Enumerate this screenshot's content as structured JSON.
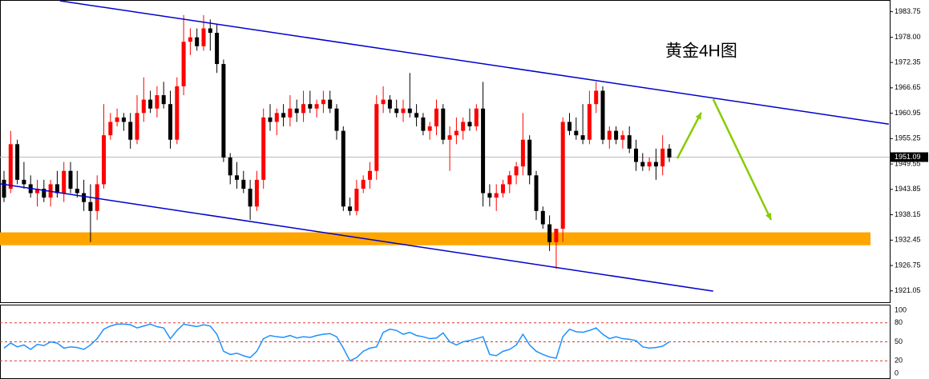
{
  "chart_data": {
    "type": "candlestick",
    "title": "黄金4H图",
    "open": [
      1946,
      1944,
      1954,
      1946,
      1945,
      1943,
      1944,
      1942,
      1945,
      1943,
      1948,
      1944,
      1943,
      1941,
      1939,
      1945,
      1956,
      1959,
      1960,
      1959,
      1955,
      1961,
      1964,
      1962,
      1965,
      1963,
      1955,
      1967,
      1977,
      1978,
      1976,
      1980,
      1979,
      1972,
      1951,
      1947,
      1946,
      1944,
      1940,
      1946,
      1960,
      1959,
      1961,
      1960,
      1962,
      1961,
      1963,
      1962,
      1963,
      1964,
      1962,
      1957,
      1940,
      1939,
      1944,
      1946,
      1948,
      1963,
      1964,
      1962,
      1961,
      1962,
      1961,
      1960,
      1957,
      1958,
      1962,
      1955,
      1956,
      1957,
      1959,
      1958,
      1962,
      1943,
      1942,
      1943,
      1945,
      1947,
      1949,
      1955,
      1947,
      1939,
      1936,
      1932,
      1935,
      1959,
      1957,
      1956,
      1955,
      1963,
      1966,
      1955,
      1957,
      1955,
      1956,
      1953,
      1950,
      1949,
      1950,
      1949,
      1953
    ],
    "high": [
      1948,
      1957,
      1955,
      1950,
      1947,
      1946,
      1946,
      1946,
      1948,
      1950,
      1950,
      1948,
      1946,
      1945,
      1947,
      1963,
      1961,
      1962,
      1961,
      1961,
      1965,
      1969,
      1966,
      1967,
      1968,
      1966,
      1969,
      1983,
      1980,
      1980,
      1983,
      1982,
      1981,
      1973,
      1952,
      1950,
      1948,
      1946,
      1948,
      1962,
      1963,
      1962,
      1963,
      1965,
      1964,
      1966,
      1966,
      1964,
      1966,
      1966,
      1963,
      1958,
      1942,
      1946,
      1947,
      1950,
      1965,
      1967,
      1965,
      1964,
      1964,
      1970,
      1963,
      1961,
      1959,
      1964,
      1963,
      1958,
      1960,
      1960,
      1962,
      1963,
      1968,
      1945,
      1945,
      1946,
      1948,
      1950,
      1961,
      1956,
      1948,
      1940,
      1938,
      1935,
      1960,
      1961,
      1960,
      1963,
      1966,
      1968,
      1967,
      1958,
      1958,
      1957,
      1958,
      1955,
      1952,
      1951,
      1953,
      1956,
      1954
    ],
    "low": [
      1941,
      1943,
      1945,
      1944,
      1942,
      1940,
      1941,
      1940,
      1942,
      1941,
      1943,
      1942,
      1939,
      1932,
      1937,
      1944,
      1955,
      1958,
      1957,
      1953,
      1954,
      1959,
      1961,
      1960,
      1962,
      1953,
      1954,
      1965,
      1974,
      1975,
      1975,
      1975,
      1970,
      1950,
      1945,
      1944,
      1943,
      1937,
      1939,
      1944,
      1957,
      1956,
      1958,
      1958,
      1959,
      1959,
      1961,
      1960,
      1961,
      1961,
      1955,
      1939,
      1938,
      1938,
      1943,
      1944,
      1946,
      1961,
      1961,
      1960,
      1959,
      1960,
      1958,
      1956,
      1955,
      1956,
      1954,
      1948,
      1954,
      1955,
      1957,
      1957,
      1940,
      1940,
      1939,
      1942,
      1943,
      1945,
      1947,
      1945,
      1937,
      1935,
      1930,
      1926,
      1932,
      1956,
      1955,
      1954,
      1954,
      1961,
      1954,
      1953,
      1954,
      1953,
      1952,
      1948,
      1948,
      1948,
      1946,
      1947,
      1950
    ],
    "close": [
      1942,
      1954,
      1946,
      1945,
      1943,
      1944,
      1942,
      1945,
      1943,
      1948,
      1944,
      1943,
      1941,
      1939,
      1945,
      1956,
      1959,
      1960,
      1959,
      1955,
      1961,
      1964,
      1962,
      1965,
      1963,
      1955,
      1967,
      1977,
      1978,
      1976,
      1980,
      1979,
      1972,
      1951,
      1947,
      1946,
      1944,
      1940,
      1946,
      1960,
      1959,
      1961,
      1960,
      1962,
      1961,
      1963,
      1962,
      1963,
      1964,
      1962,
      1957,
      1940,
      1939,
      1944,
      1946,
      1948,
      1963,
      1964,
      1962,
      1961,
      1962,
      1961,
      1960,
      1957,
      1958,
      1962,
      1955,
      1956,
      1957,
      1959,
      1958,
      1962,
      1943,
      1942,
      1943,
      1945,
      1947,
      1949,
      1955,
      1947,
      1939,
      1936,
      1932,
      1935,
      1959,
      1957,
      1956,
      1955,
      1963,
      1966,
      1955,
      1957,
      1955,
      1956,
      1953,
      1950,
      1949,
      1950,
      1949,
      1953,
      1951
    ],
    "up_color": "#ff0000",
    "down_color": "#000000",
    "ylim": [
      1918.5,
      1986.2
    ],
    "yticks": [
      1983.75,
      {
        "value": 1978,
        "label": "1978.00"
      },
      1972.35,
      1966.65,
      1960.95,
      1955.25,
      1949.55,
      1943.85,
      1938.15,
      1932.45,
      1926.75,
      1921.05
    ],
    "last_price": {
      "value": 1951.09,
      "label": "1951.09"
    },
    "zone": {
      "low": 1931.3,
      "high": 1934.2,
      "color": "#ffa500"
    },
    "channel": {
      "color": "#0000cc",
      "lines": [
        {
          "x": [
            8.4,
            133
          ],
          "y": [
            1986.2,
            1958.5
          ]
        },
        {
          "x": [
            -0.6,
            106.6
          ],
          "y": [
            1945.1,
            1921
          ]
        }
      ]
    },
    "arrows": {
      "color": "#88cc00",
      "lines": [
        {
          "x": [
            101.2,
            104.8
          ],
          "y": [
            1950.8,
            1961.1
          ]
        },
        {
          "x": [
            106.6,
            115.3
          ],
          "y": [
            1964.1,
            1937
          ]
        }
      ]
    },
    "indicator": {
      "values": [
        40,
        48,
        42,
        45,
        38,
        46,
        44,
        50,
        48,
        40,
        42,
        41,
        38,
        45,
        55,
        70,
        75,
        78,
        78,
        77,
        72,
        75,
        78,
        74,
        72,
        55,
        68,
        78,
        76,
        74,
        77,
        75,
        62,
        35,
        30,
        32,
        28,
        25,
        35,
        55,
        60,
        58,
        57,
        60,
        56,
        58,
        57,
        60,
        62,
        63,
        58,
        40,
        20,
        25,
        35,
        40,
        42,
        65,
        70,
        68,
        62,
        65,
        60,
        58,
        55,
        56,
        64,
        50,
        45,
        50,
        52,
        55,
        58,
        30,
        28,
        35,
        38,
        45,
        62,
        45,
        35,
        30,
        26,
        24,
        58,
        70,
        66,
        65,
        68,
        72,
        62,
        55,
        58,
        55,
        54,
        52,
        42,
        40,
        41,
        43,
        50
      ],
      "color": "#1e90ff",
      "ylim": [
        0,
        100
      ],
      "yticks": [
        100,
        80,
        50,
        20,
        0
      ],
      "levels": [
        80,
        50,
        20
      ],
      "level_color": "#dd3333"
    }
  }
}
